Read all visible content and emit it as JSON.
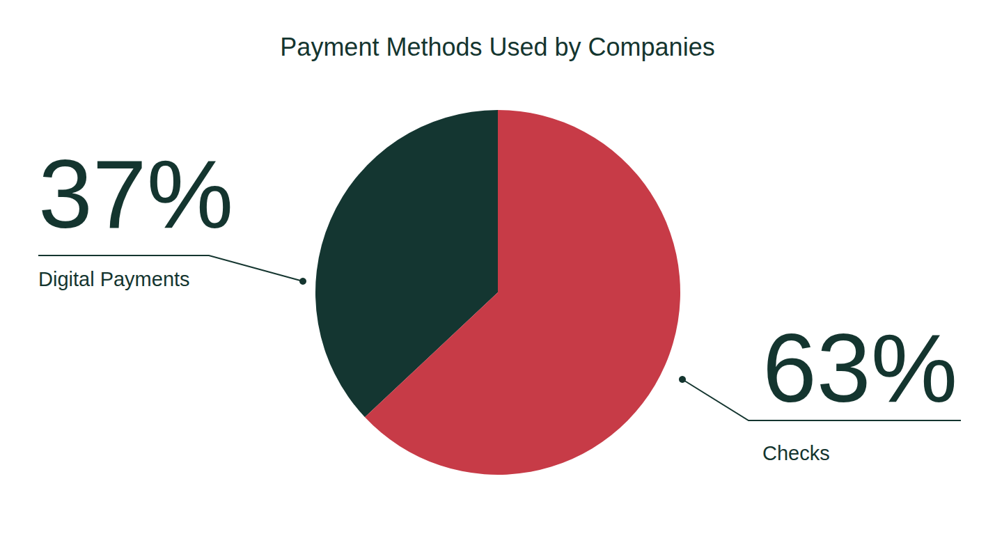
{
  "chart_data": {
    "type": "pie",
    "title": "Payment Methods Used by Companies",
    "categories": [
      "Digital Payments",
      "Checks"
    ],
    "values": [
      37,
      63
    ],
    "value_labels": [
      "37%",
      "63%"
    ],
    "colors": [
      "#143631",
      "#c73b47"
    ],
    "data_labels": true
  }
}
